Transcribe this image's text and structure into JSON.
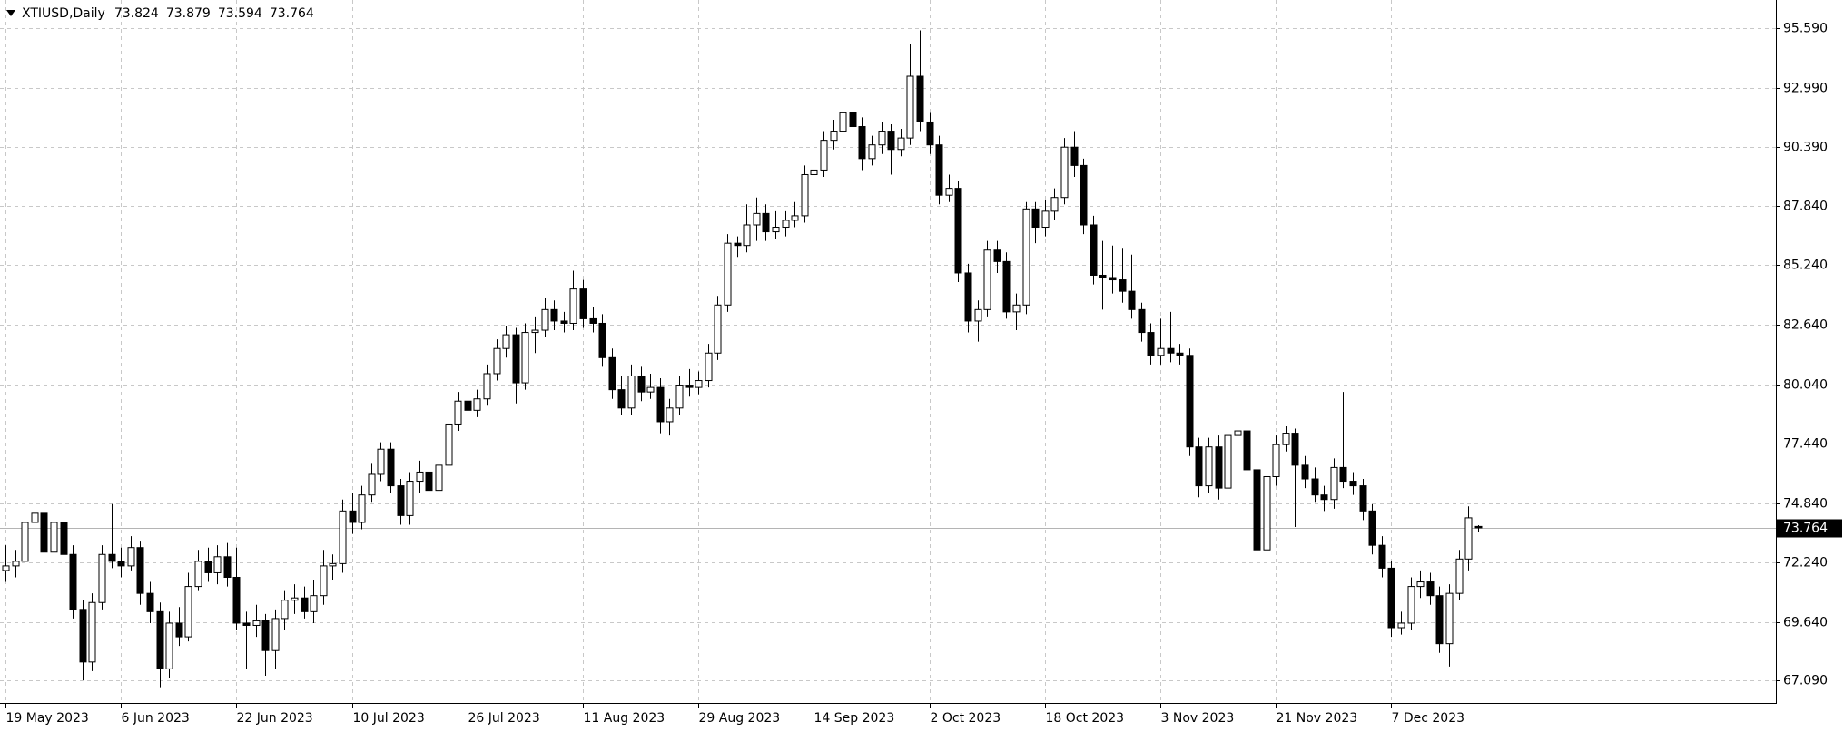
{
  "chart_data": {
    "type": "candlestick",
    "title": "XTIUSD,Daily",
    "categories": [
      "19 May 2023",
      null,
      null,
      null,
      null,
      null,
      null,
      null,
      null,
      null,
      null,
      null,
      "6 Jun 2023",
      null,
      null,
      null,
      null,
      null,
      null,
      null,
      null,
      null,
      null,
      null,
      "22 Jun 2023",
      null,
      null,
      null,
      null,
      null,
      null,
      null,
      null,
      null,
      null,
      null,
      "10 Jul 2023",
      null,
      null,
      null,
      null,
      null,
      null,
      null,
      null,
      null,
      null,
      null,
      "26 Jul 2023",
      null,
      null,
      null,
      null,
      null,
      null,
      null,
      null,
      null,
      null,
      null,
      "11 Aug 2023",
      null,
      null,
      null,
      null,
      null,
      null,
      null,
      null,
      null,
      null,
      null,
      "29 Aug 2023",
      null,
      null,
      null,
      null,
      null,
      null,
      null,
      null,
      null,
      null,
      null,
      "14 Sep 2023",
      null,
      null,
      null,
      null,
      null,
      null,
      null,
      null,
      null,
      null,
      null,
      "2 Oct 2023",
      null,
      null,
      null,
      null,
      null,
      null,
      null,
      null,
      null,
      null,
      null,
      "18 Oct 2023",
      null,
      null,
      null,
      null,
      null,
      null,
      null,
      null,
      null,
      null,
      null,
      "3 Nov 2023",
      null,
      null,
      null,
      null,
      null,
      null,
      null,
      null,
      null,
      null,
      null,
      "21 Nov 2023",
      null,
      null,
      null,
      null,
      null,
      null,
      null,
      null,
      null,
      null,
      null,
      "7 Dec 2023",
      null,
      null,
      null,
      null,
      null,
      null,
      null,
      null,
      null
    ],
    "open": [
      71.9,
      72.1,
      72.3,
      74.0,
      74.4,
      72.7,
      74.0,
      72.6,
      70.2,
      67.9,
      70.5,
      72.6,
      72.3,
      72.1,
      72.9,
      70.9,
      70.1,
      67.6,
      69.6,
      69.0,
      71.2,
      72.3,
      71.8,
      72.5,
      71.6,
      69.6,
      69.5,
      69.7,
      68.4,
      69.8,
      70.6,
      70.7,
      70.1,
      70.8,
      72.1,
      72.2,
      74.5,
      74.0,
      75.2,
      76.1,
      77.2,
      75.6,
      74.3,
      75.8,
      76.2,
      75.4,
      76.5,
      78.3,
      79.3,
      78.9,
      79.4,
      80.5,
      81.6,
      82.2,
      80.1,
      82.3,
      82.4,
      83.3,
      82.8,
      82.7,
      84.2,
      82.9,
      82.7,
      81.2,
      79.8,
      79.0,
      80.4,
      79.7,
      79.9,
      78.4,
      79.0,
      80.0,
      79.9,
      80.2,
      81.4,
      83.5,
      86.2,
      86.1,
      87.0,
      87.5,
      86.7,
      86.9,
      87.2,
      87.4,
      89.2,
      89.4,
      90.7,
      91.1,
      91.9,
      91.3,
      89.9,
      90.5,
      91.1,
      90.3,
      90.8,
      93.5,
      91.5,
      90.5,
      88.3,
      88.6,
      84.9,
      82.8,
      83.3,
      85.9,
      85.4,
      83.2,
      83.5,
      87.7,
      86.9,
      87.6,
      88.2,
      90.4,
      89.6,
      87.0,
      84.8,
      84.7,
      84.6,
      84.1,
      83.3,
      82.3,
      81.3,
      81.6,
      81.4,
      81.3,
      77.3,
      75.6,
      77.3,
      75.5,
      77.8,
      78.0,
      76.3,
      72.8,
      76.0,
      77.4,
      77.9,
      76.5,
      75.9,
      75.2,
      75.0,
      76.4,
      75.8,
      75.6,
      74.5,
      73.0,
      72.0,
      69.4,
      69.6,
      71.2,
      71.4,
      70.8,
      68.7,
      70.9,
      72.4,
      73.824
    ],
    "high": [
      73.0,
      72.8,
      74.4,
      74.9,
      74.7,
      74.4,
      74.3,
      73.0,
      70.6,
      70.9,
      73.0,
      74.8,
      72.9,
      73.4,
      73.2,
      71.4,
      70.5,
      70.1,
      70.3,
      71.8,
      72.8,
      72.9,
      73.0,
      73.1,
      72.9,
      70.1,
      70.4,
      70.0,
      70.2,
      71.0,
      71.3,
      71.2,
      71.5,
      72.8,
      72.6,
      75.0,
      75.3,
      75.6,
      76.6,
      77.5,
      77.5,
      75.9,
      76.2,
      76.7,
      76.6,
      77.0,
      78.6,
      79.7,
      79.9,
      79.8,
      80.9,
      82.0,
      82.6,
      82.5,
      82.7,
      83.0,
      83.8,
      83.7,
      83.2,
      85.0,
      84.6,
      83.4,
      83.1,
      81.6,
      80.4,
      80.9,
      80.8,
      80.5,
      80.3,
      79.4,
      80.4,
      80.7,
      80.6,
      81.8,
      83.9,
      86.6,
      86.5,
      87.9,
      88.2,
      87.9,
      87.6,
      87.6,
      88.0,
      89.6,
      89.9,
      91.1,
      91.6,
      92.9,
      92.3,
      91.7,
      90.9,
      91.5,
      91.4,
      91.2,
      94.9,
      95.5,
      91.9,
      90.9,
      89.2,
      88.9,
      85.3,
      83.7,
      86.3,
      86.3,
      85.8,
      84.0,
      88.0,
      88.0,
      88.1,
      88.6,
      90.8,
      91.1,
      89.9,
      87.4,
      86.3,
      86.1,
      86.0,
      85.7,
      83.6,
      82.7,
      82.9,
      83.2,
      81.8,
      81.6,
      77.7,
      77.7,
      77.8,
      78.2,
      79.9,
      78.6,
      76.6,
      76.4,
      77.8,
      78.2,
      78.1,
      76.9,
      76.4,
      75.6,
      76.8,
      79.7,
      76.2,
      75.9,
      74.8,
      73.4,
      72.3,
      70.1,
      71.6,
      71.9,
      71.8,
      71.2,
      71.3,
      72.8,
      74.7,
      73.879
    ],
    "low": [
      71.4,
      71.6,
      71.9,
      73.5,
      72.2,
      72.3,
      72.2,
      69.8,
      67.1,
      67.5,
      70.2,
      72.0,
      71.6,
      71.9,
      70.4,
      69.6,
      66.8,
      67.2,
      68.6,
      68.8,
      71.0,
      71.4,
      71.3,
      71.2,
      69.3,
      67.6,
      69.0,
      67.3,
      67.6,
      69.3,
      70.0,
      69.8,
      69.6,
      70.4,
      71.5,
      71.8,
      73.5,
      73.7,
      74.9,
      75.8,
      75.3,
      73.9,
      73.9,
      75.3,
      74.9,
      75.1,
      76.2,
      78.0,
      78.5,
      78.6,
      79.1,
      80.2,
      81.2,
      79.2,
      79.8,
      81.4,
      82.1,
      82.4,
      82.3,
      82.4,
      82.5,
      82.3,
      80.8,
      79.4,
      78.7,
      78.7,
      79.3,
      79.4,
      77.9,
      77.8,
      78.7,
      79.5,
      79.6,
      79.9,
      81.1,
      83.2,
      85.6,
      85.8,
      86.3,
      86.3,
      86.4,
      86.5,
      86.9,
      87.1,
      88.8,
      89.1,
      90.3,
      90.6,
      90.9,
      89.4,
      89.6,
      90.1,
      89.2,
      90.0,
      90.5,
      91.1,
      90.1,
      87.9,
      88.0,
      84.5,
      82.3,
      81.9,
      83.0,
      84.9,
      82.9,
      82.4,
      83.1,
      86.2,
      86.5,
      87.2,
      87.9,
      89.1,
      86.6,
      84.4,
      83.3,
      84.0,
      83.6,
      82.9,
      81.9,
      80.9,
      80.9,
      81.0,
      80.9,
      76.9,
      75.1,
      75.3,
      75.0,
      75.2,
      77.4,
      75.9,
      72.4,
      72.5,
      75.6,
      77.1,
      73.8,
      75.5,
      74.9,
      74.5,
      74.6,
      75.5,
      75.2,
      74.1,
      72.6,
      71.6,
      69.0,
      69.1,
      69.3,
      70.7,
      70.4,
      68.3,
      67.7,
      70.6,
      71.9,
      73.594
    ],
    "close": [
      72.1,
      72.3,
      74.0,
      74.4,
      72.7,
      74.0,
      72.6,
      70.2,
      67.9,
      70.5,
      72.6,
      72.3,
      72.1,
      72.9,
      70.9,
      70.1,
      67.6,
      69.6,
      69.0,
      71.2,
      72.3,
      71.8,
      72.5,
      71.6,
      69.6,
      69.5,
      69.7,
      68.4,
      69.8,
      70.6,
      70.7,
      70.1,
      70.8,
      72.1,
      72.2,
      74.5,
      74.0,
      75.2,
      76.1,
      77.2,
      75.6,
      74.3,
      75.8,
      76.2,
      75.4,
      76.5,
      78.3,
      79.3,
      78.9,
      79.4,
      80.5,
      81.6,
      82.2,
      80.1,
      82.3,
      82.4,
      83.3,
      82.8,
      82.7,
      84.2,
      82.9,
      82.7,
      81.2,
      79.8,
      79.0,
      80.4,
      79.7,
      79.9,
      78.4,
      79.0,
      80.0,
      79.9,
      80.2,
      81.4,
      83.5,
      86.2,
      86.1,
      87.0,
      87.5,
      86.7,
      86.9,
      87.2,
      87.4,
      89.2,
      89.4,
      90.7,
      91.1,
      91.9,
      91.3,
      89.9,
      90.5,
      91.1,
      90.3,
      90.8,
      93.5,
      91.5,
      90.5,
      88.3,
      88.6,
      84.9,
      82.8,
      83.3,
      85.9,
      85.4,
      83.2,
      83.5,
      87.7,
      86.9,
      87.6,
      88.2,
      90.4,
      89.6,
      87.0,
      84.8,
      84.7,
      84.6,
      84.1,
      83.3,
      82.3,
      81.3,
      81.6,
      81.4,
      81.3,
      77.3,
      75.6,
      77.3,
      75.5,
      77.8,
      78.0,
      76.3,
      72.8,
      76.0,
      77.4,
      77.9,
      76.5,
      75.9,
      75.2,
      75.0,
      76.4,
      75.8,
      75.6,
      74.5,
      73.0,
      72.0,
      69.4,
      69.6,
      71.2,
      71.4,
      70.8,
      68.7,
      70.9,
      72.4,
      74.2,
      73.764
    ],
    "up_color": "#ffffff",
    "down_color": "#000000",
    "ylim": [
      66.11,
      96.83
    ],
    "yticks": [
      {
        "value": 67.09,
        "label": "67.090"
      },
      {
        "value": 69.64,
        "label": "69.640"
      },
      {
        "value": 72.24,
        "label": "72.240"
      },
      {
        "value": 74.84,
        "label": "74.840"
      },
      {
        "value": 77.44,
        "label": "77.440"
      },
      {
        "value": 80.04,
        "label": "80.040"
      },
      {
        "value": 82.64,
        "label": "82.640"
      },
      {
        "value": 85.24,
        "label": "85.240"
      },
      {
        "value": 87.84,
        "label": "87.840"
      },
      {
        "value": 90.39,
        "label": "90.390"
      },
      {
        "value": 92.99,
        "label": "92.990"
      },
      {
        "value": 95.59,
        "label": "95.590"
      }
    ],
    "grid": true
  }
}
